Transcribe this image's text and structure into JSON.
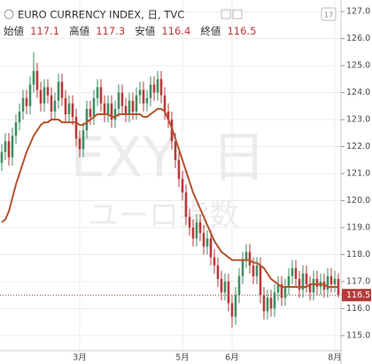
{
  "chart_data": {
    "type": "candlestick",
    "title": "EURO CURRENCY INDEX, 日, TVC",
    "date_icon": "17",
    "ohlc_labels": [
      "始値",
      "高値",
      "安値",
      "終値"
    ],
    "watermark": [
      "EXY, 日",
      "ユーロ指数"
    ],
    "categories": [
      null,
      null,
      null,
      null,
      null,
      null,
      null,
      null,
      null,
      null,
      null,
      null,
      null,
      null,
      null,
      null,
      null,
      null,
      null,
      null,
      null,
      null,
      "3月",
      null,
      null,
      null,
      null,
      null,
      null,
      null,
      null,
      null,
      null,
      null,
      null,
      null,
      null,
      null,
      null,
      null,
      null,
      null,
      null,
      null,
      null,
      null,
      null,
      null,
      null,
      null,
      null,
      "5月",
      null,
      null,
      null,
      null,
      null,
      null,
      null,
      null,
      null,
      null,
      null,
      null,
      null,
      "6月",
      null,
      null,
      null,
      null,
      null,
      null,
      null,
      null,
      null,
      null,
      null,
      null,
      null,
      null,
      null,
      null,
      null,
      null,
      null,
      null,
      null,
      null,
      null,
      null,
      null,
      null,
      null,
      null,
      "8月",
      null
    ],
    "open": [
      121.4,
      121.8,
      122.2,
      121.6,
      122.4,
      122.9,
      123.3,
      123.8,
      123.5,
      124.3,
      124.8,
      124.1,
      123.6,
      124.2,
      123.9,
      123.3,
      123.7,
      124.4,
      123.8,
      123.2,
      123.6,
      123.1,
      122.3,
      121.9,
      122.6,
      123.4,
      123.1,
      123.8,
      124.2,
      123.6,
      123.2,
      123.6,
      123.0,
      123.4,
      124.0,
      123.5,
      123.2,
      123.7,
      123.3,
      123.9,
      124.1,
      123.6,
      123.8,
      124.3,
      124.0,
      124.5,
      123.9,
      123.3,
      123.0,
      122.2,
      121.5,
      120.8,
      120.3,
      119.4,
      119.0,
      118.6,
      119.2,
      118.8,
      118.3,
      118.6,
      117.9,
      117.6,
      117.1,
      116.6,
      117.0,
      116.2,
      115.7,
      116.5,
      117.2,
      117.8,
      118.1,
      117.6,
      117.2,
      117.6,
      116.5,
      115.9,
      116.4,
      116.0,
      116.6,
      116.9,
      116.4,
      116.8,
      117.2,
      117.5,
      117.1,
      116.7,
      117.3,
      116.9,
      116.6,
      117.1,
      116.8,
      117.0,
      116.7,
      117.2,
      116.9,
      117.1
    ],
    "high": [
      122.1,
      122.5,
      122.5,
      122.7,
      123.2,
      123.6,
      124.1,
      124.1,
      124.6,
      125.5,
      125.1,
      124.4,
      124.5,
      124.5,
      124.2,
      124.0,
      124.7,
      124.7,
      124.1,
      123.9,
      123.9,
      123.4,
      122.6,
      122.9,
      123.7,
      123.7,
      124.1,
      124.5,
      124.5,
      123.9,
      123.9,
      123.9,
      123.7,
      124.3,
      124.3,
      123.8,
      124.0,
      124.0,
      124.2,
      124.4,
      124.4,
      124.1,
      124.6,
      124.6,
      124.8,
      124.8,
      124.2,
      123.6,
      123.3,
      122.5,
      121.8,
      121.1,
      120.6,
      119.7,
      119.3,
      119.5,
      119.5,
      119.1,
      118.9,
      118.9,
      118.2,
      117.9,
      117.4,
      117.3,
      117.3,
      116.5,
      116.8,
      117.5,
      118.1,
      118.4,
      118.4,
      117.9,
      117.9,
      117.9,
      116.8,
      116.7,
      116.7,
      116.9,
      117.2,
      117.2,
      117.1,
      117.5,
      117.8,
      117.8,
      117.4,
      117.6,
      117.6,
      117.2,
      117.4,
      117.4,
      117.3,
      117.3,
      117.5,
      117.5,
      117.4,
      117.3
    ],
    "low": [
      121.1,
      121.5,
      121.3,
      121.3,
      122.1,
      122.6,
      123.0,
      123.2,
      123.2,
      124.0,
      123.8,
      123.3,
      123.3,
      123.6,
      123.0,
      123.0,
      123.4,
      123.5,
      122.9,
      122.9,
      122.8,
      122.0,
      121.6,
      121.6,
      122.3,
      122.8,
      122.8,
      123.5,
      123.3,
      122.9,
      122.9,
      122.7,
      122.7,
      123.1,
      123.2,
      122.9,
      122.9,
      123.0,
      123.0,
      123.6,
      123.3,
      123.3,
      123.5,
      123.7,
      123.7,
      123.6,
      123.0,
      122.7,
      121.9,
      121.2,
      120.5,
      120.0,
      119.1,
      118.7,
      118.3,
      118.3,
      118.5,
      118.0,
      118.0,
      117.6,
      117.3,
      116.8,
      116.3,
      116.3,
      115.9,
      115.3,
      115.4,
      116.2,
      116.9,
      117.5,
      117.3,
      116.9,
      116.9,
      116.2,
      115.6,
      115.6,
      115.7,
      115.7,
      116.3,
      116.1,
      116.1,
      116.5,
      116.9,
      116.8,
      116.4,
      116.4,
      116.6,
      116.3,
      116.3,
      116.5,
      116.5,
      116.4,
      116.4,
      116.6,
      116.6,
      116.4
    ],
    "close": [
      121.8,
      122.2,
      121.6,
      122.4,
      122.9,
      123.3,
      123.8,
      123.5,
      124.3,
      124.8,
      124.1,
      123.6,
      124.2,
      123.9,
      123.3,
      123.7,
      124.4,
      123.8,
      123.2,
      123.6,
      123.1,
      122.3,
      121.9,
      122.6,
      123.4,
      123.1,
      123.8,
      124.2,
      123.6,
      123.2,
      123.6,
      123.0,
      123.4,
      124.0,
      123.5,
      123.2,
      123.7,
      123.3,
      123.9,
      124.1,
      123.6,
      123.8,
      124.3,
      124.0,
      124.5,
      123.9,
      123.3,
      123.0,
      122.2,
      121.5,
      120.8,
      120.3,
      119.4,
      119.0,
      118.6,
      119.2,
      118.8,
      118.3,
      118.6,
      117.9,
      117.6,
      117.1,
      116.6,
      117.0,
      116.2,
      115.7,
      116.5,
      117.2,
      117.8,
      118.1,
      117.6,
      117.2,
      117.6,
      116.5,
      115.9,
      116.4,
      116.0,
      116.6,
      116.9,
      116.4,
      116.8,
      117.2,
      117.5,
      117.1,
      116.7,
      117.3,
      116.9,
      116.6,
      117.1,
      116.8,
      117.0,
      116.7,
      117.2,
      116.9,
      117.1,
      116.5
    ],
    "up_color": "#3f8f63",
    "down_color": "#b83a3a",
    "moving_average": {
      "color": "#b5532c",
      "values": [
        119.2,
        119.3,
        119.6,
        120.1,
        120.6,
        121.0,
        121.4,
        121.8,
        122.1,
        122.4,
        122.6,
        122.8,
        122.9,
        122.9,
        123.0,
        123.0,
        123.0,
        122.9,
        122.9,
        122.9,
        122.9,
        122.9,
        122.8,
        122.8,
        122.9,
        123.0,
        123.1,
        123.2,
        123.2,
        123.2,
        123.2,
        123.1,
        123.1,
        123.2,
        123.2,
        123.2,
        123.2,
        123.2,
        123.2,
        123.2,
        123.1,
        123.1,
        123.2,
        123.3,
        123.4,
        123.4,
        123.3,
        123.0,
        122.7,
        122.3,
        121.9,
        121.5,
        121.1,
        120.7,
        120.3,
        120.0,
        119.7,
        119.4,
        119.1,
        118.8,
        118.5,
        118.3,
        118.1,
        118.0,
        117.9,
        117.8,
        117.8,
        117.8,
        117.8,
        117.8,
        117.8,
        117.7,
        117.7,
        117.6,
        117.5,
        117.3,
        117.1,
        117.0,
        116.9,
        116.8,
        116.8,
        116.8,
        116.8,
        116.8,
        116.8,
        116.8,
        116.8,
        116.9,
        116.9,
        116.9,
        116.9,
        116.9,
        116.8,
        116.8,
        116.8,
        116.8
      ]
    },
    "ylim": [
      114.44,
      127.43
    ],
    "yticks": [
      {
        "value": 115,
        "label": "115.0"
      },
      {
        "value": 116,
        "label": "116.0"
      },
      {
        "value": 117,
        "label": "117.0"
      },
      {
        "value": 118,
        "label": "118.0"
      },
      {
        "value": 119,
        "label": "119.0"
      },
      {
        "value": 120,
        "label": "120.0"
      },
      {
        "value": 121,
        "label": "121.0"
      },
      {
        "value": 122,
        "label": "122.0"
      },
      {
        "value": 123,
        "label": "123.0"
      },
      {
        "value": 124,
        "label": "124.0"
      },
      {
        "value": 125,
        "label": "125.0"
      },
      {
        "value": 126,
        "label": "126.0"
      },
      {
        "value": 127,
        "label": "127.0"
      }
    ],
    "grid": true
  }
}
